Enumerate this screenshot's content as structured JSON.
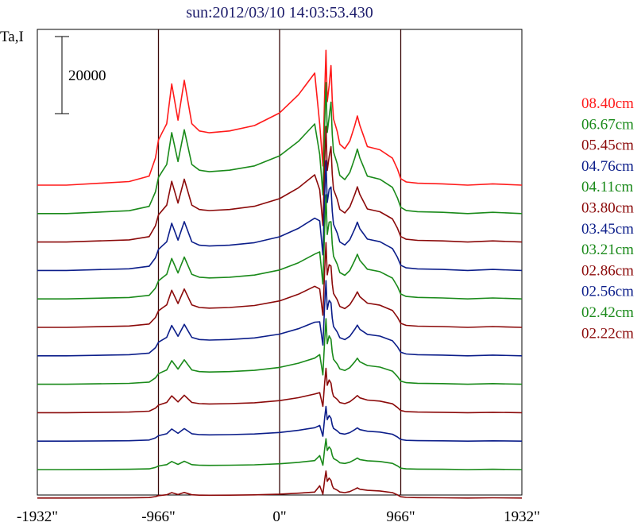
{
  "chart_data": {
    "type": "line",
    "title": "sun:2012/03/10 14:03:53.430",
    "ylabel": "Ta,I",
    "scale_bar_label": "20000",
    "scale_bar_value": 20000,
    "xlim": [
      -1932,
      1932
    ],
    "x_ticks": [
      {
        "value": -1932,
        "label": "-1932\""
      },
      {
        "value": -966,
        "label": "-966\""
      },
      {
        "value": 0,
        "label": "0\""
      },
      {
        "value": 966,
        "label": "966\""
      },
      {
        "value": 1932,
        "label": "1932\""
      }
    ],
    "vertical_lines": [
      -966,
      0,
      966
    ],
    "grid": false,
    "legend_position": "right",
    "series_shape": {
      "x": [
        -1932,
        -1700,
        -1200,
        -1040,
        -990,
        -966,
        -930,
        -900,
        -860,
        -810,
        -760,
        -700,
        -640,
        -560,
        -400,
        -200,
        0,
        150,
        280,
        320,
        345,
        360,
        370,
        380,
        395,
        410,
        420,
        430,
        445,
        460,
        480,
        520,
        560,
        600,
        620,
        640,
        700,
        800,
        900,
        940,
        966,
        1010,
        1100,
        1300,
        1500,
        1700,
        1932
      ],
      "y": [
        0.0,
        0.0,
        0.02,
        0.05,
        0.15,
        0.25,
        0.3,
        0.34,
        0.56,
        0.36,
        0.58,
        0.34,
        0.3,
        0.29,
        0.3,
        0.33,
        0.4,
        0.5,
        0.62,
        0.95,
        0.3,
        1.45,
        2.1,
        1.3,
        1.55,
        1.9,
        1.35,
        1.05,
        0.95,
        0.85,
        0.65,
        0.58,
        0.7,
        0.95,
        1.1,
        0.95,
        0.6,
        0.55,
        0.42,
        0.25,
        0.1,
        0.05,
        0.03,
        0.02,
        0.0,
        0.02,
        0.0
      ]
    },
    "series": [
      {
        "name": "08.40cm",
        "color": "#ff1a1a",
        "peak": 35000,
        "peak2_ratio": 0.95,
        "limb": 15000
      },
      {
        "name": "06.67cm",
        "color": "#1a8a1a",
        "peak": 34000,
        "peak2_ratio": 0.85,
        "limb": 12000
      },
      {
        "name": "05.45cm",
        "color": "#8b0a0a",
        "peak": 30000,
        "peak2_ratio": 0.78,
        "limb": 9000
      },
      {
        "name": "04.76cm",
        "color": "#0c1e8a",
        "peak": 28500,
        "peak2_ratio": 0.6,
        "limb": 7000
      },
      {
        "name": "04.11cm",
        "color": "#1a8a1a",
        "peak": 27000,
        "peak2_ratio": 0.55,
        "limb": 6000
      },
      {
        "name": "03.80cm",
        "color": "#8b0a0a",
        "peak": 22000,
        "peak2_ratio": 0.5,
        "limb": 5500
      },
      {
        "name": "03.45cm",
        "color": "#0c1e8a",
        "peak": 19500,
        "peak2_ratio": 0.45,
        "limb": 4500
      },
      {
        "name": "03.21cm",
        "color": "#1a8a1a",
        "peak": 17000,
        "peak2_ratio": 0.4,
        "limb": 3500
      },
      {
        "name": "02.86cm",
        "color": "#8b0a0a",
        "peak": 11500,
        "peak2_ratio": 0.35,
        "limb": 2500
      },
      {
        "name": "02.56cm",
        "color": "#0c1e8a",
        "peak": 9000,
        "peak2_ratio": 0.33,
        "limb": 1800
      },
      {
        "name": "02.42cm",
        "color": "#1a8a1a",
        "peak": 8000,
        "peak2_ratio": 0.3,
        "limb": 1200
      },
      {
        "name": "02.22cm",
        "color": "#8b0a0a",
        "peak": 7000,
        "peak2_ratio": 0.3,
        "limb": 800
      }
    ]
  }
}
